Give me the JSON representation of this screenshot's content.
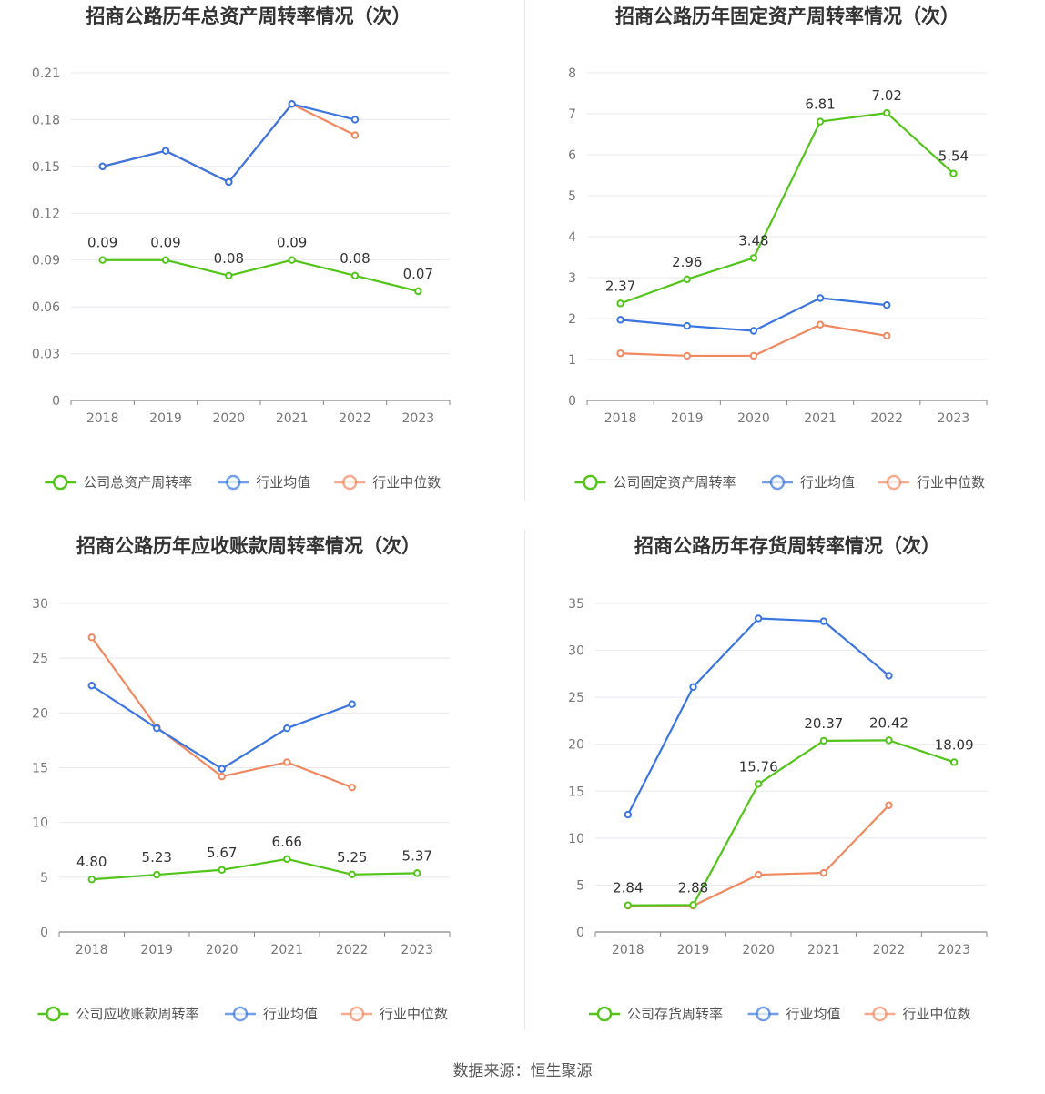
{
  "source": "数据来源：恒生聚源",
  "colors": {
    "company": "#52c41a",
    "avg": "#3b76e0",
    "median": "#f08860",
    "grid": "#e8e8ee",
    "axis": "#888"
  },
  "chart_data": [
    {
      "type": "line",
      "title": "招商公路历年总资产周转率情况（次）",
      "categories": [
        "2018",
        "2019",
        "2020",
        "2021",
        "2022",
        "2023"
      ],
      "y_ticks": [
        "0",
        "0.03",
        "0.06",
        "0.09",
        "0.12",
        "0.15",
        "0.18",
        "0.21"
      ],
      "ylim": [
        0,
        0.21
      ],
      "series": [
        {
          "name": "公司总资产周转率",
          "role": "company",
          "values": [
            0.09,
            0.09,
            0.08,
            0.09,
            0.08,
            0.07
          ],
          "labels": [
            "0.09",
            "0.09",
            "0.08",
            "0.09",
            "0.08",
            "0.07"
          ]
        },
        {
          "name": "行业均值",
          "role": "avg",
          "values": [
            0.15,
            0.16,
            0.14,
            0.19,
            0.18,
            null
          ]
        },
        {
          "name": "行业中位数",
          "role": "median",
          "values": [
            0.15,
            0.16,
            0.14,
            0.19,
            0.17,
            null
          ]
        }
      ],
      "legend_position": "bottom"
    },
    {
      "type": "line",
      "title": "招商公路历年固定资产周转率情况（次）",
      "categories": [
        "2018",
        "2019",
        "2020",
        "2021",
        "2022",
        "2023"
      ],
      "y_ticks": [
        "0",
        "1",
        "2",
        "3",
        "4",
        "5",
        "6",
        "7",
        "8"
      ],
      "ylim": [
        0,
        8
      ],
      "series": [
        {
          "name": "公司固定资产周转率",
          "role": "company",
          "values": [
            2.37,
            2.96,
            3.48,
            6.81,
            7.02,
            5.54
          ],
          "labels": [
            "2.37",
            "2.96",
            "3.48",
            "6.81",
            "7.02",
            "5.54"
          ]
        },
        {
          "name": "行业均值",
          "role": "avg",
          "values": [
            1.97,
            1.82,
            1.7,
            2.5,
            2.33,
            null
          ]
        },
        {
          "name": "行业中位数",
          "role": "median",
          "values": [
            1.15,
            1.09,
            1.09,
            1.85,
            1.58,
            null
          ]
        }
      ],
      "legend_position": "bottom"
    },
    {
      "type": "line",
      "title": "招商公路历年应收账款周转率情况（次）",
      "categories": [
        "2018",
        "2019",
        "2020",
        "2021",
        "2022",
        "2023"
      ],
      "y_ticks": [
        "0",
        "5",
        "10",
        "15",
        "20",
        "25",
        "30"
      ],
      "ylim": [
        0,
        30
      ],
      "series": [
        {
          "name": "公司应收账款周转率",
          "role": "company",
          "values": [
            4.8,
            5.23,
            5.67,
            6.66,
            5.25,
            5.37
          ],
          "labels": [
            "4.80",
            "5.23",
            "5.67",
            "6.66",
            "5.25",
            "5.37"
          ]
        },
        {
          "name": "行业均值",
          "role": "avg",
          "values": [
            22.5,
            18.6,
            14.9,
            18.6,
            20.8,
            null
          ]
        },
        {
          "name": "行业中位数",
          "role": "median",
          "values": [
            26.9,
            18.7,
            14.2,
            15.5,
            13.2,
            null
          ]
        }
      ],
      "legend_position": "bottom"
    },
    {
      "type": "line",
      "title": "招商公路历年存货周转率情况（次）",
      "categories": [
        "2018",
        "2019",
        "2020",
        "2021",
        "2022",
        "2023"
      ],
      "y_ticks": [
        "0",
        "5",
        "10",
        "15",
        "20",
        "25",
        "30",
        "35"
      ],
      "ylim": [
        0,
        35
      ],
      "series": [
        {
          "name": "公司存货周转率",
          "role": "company",
          "values": [
            2.84,
            2.88,
            15.76,
            20.37,
            20.42,
            18.09
          ],
          "labels": [
            "2.84",
            "2.88",
            "15.76",
            "20.37",
            "20.42",
            "18.09"
          ]
        },
        {
          "name": "行业均值",
          "role": "avg",
          "values": [
            12.5,
            26.1,
            33.4,
            33.1,
            27.3,
            null
          ]
        },
        {
          "name": "行业中位数",
          "role": "median",
          "values": [
            2.8,
            2.8,
            6.1,
            6.3,
            13.5,
            null
          ]
        }
      ],
      "legend_position": "bottom"
    }
  ]
}
